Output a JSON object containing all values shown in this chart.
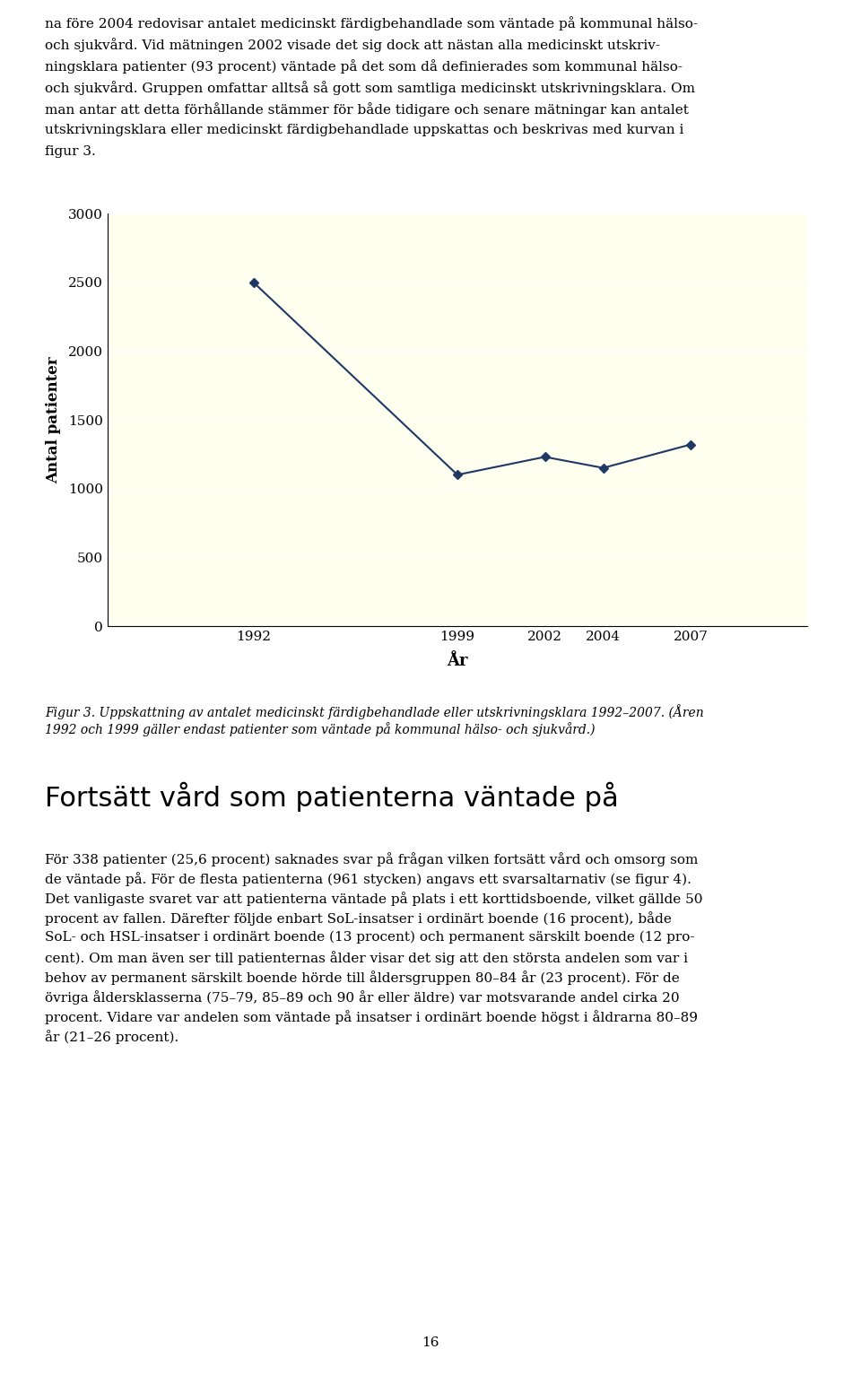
{
  "top_text_lines": [
    "na före 2004 redovisar antalet medicinskt färdigbehandlade som väntade på kommunal hälso-",
    "och sjukvård. Vid mätningen 2002 visade det sig dock att nästan alla medicinskt utskriv-",
    "ningsklara patienter (93 procent) väntade på det som då definierades som kommunal hälso-",
    "och sjukvård. Gruppen omfattar alltså så gott som samtliga medicinskt utskrivningsklara. Om",
    "man antar att detta förhållande stämmer för både tidigare och senare mätningar kan antalet",
    "utskrivningsklara eller medicinskt färdigbehandlade uppskattas och beskrivas med kurvan i",
    "figur 3."
  ],
  "x_values": [
    1992,
    1999,
    2002,
    2004,
    2007
  ],
  "y_values": [
    2500,
    1100,
    1230,
    1150,
    1320
  ],
  "ylabel": "Antal patienter",
  "xlabel": "År",
  "ylim": [
    0,
    3000
  ],
  "yticks": [
    0,
    500,
    1000,
    1500,
    2000,
    2500,
    3000
  ],
  "xticks": [
    1992,
    1999,
    2002,
    2004,
    2007
  ],
  "line_color": "#1F3864",
  "marker": "D",
  "marker_size": 5,
  "bg_color": "#FFFFF0",
  "grid_color": "#FFFFFF",
  "caption_line1": "Figur 3. Uppskattning av antalet medicinskt färdigbehandlade eller utskrivningsklara 1992–2007. (Åren",
  "caption_line2": "1992 och 1999 gäller endast patienter som väntade på kommunal hälso- och sjukvård.)",
  "section_title": "Fortsätt vård som patienterna väntade på",
  "body_text_lines": [
    "För 338 patienter (25,6 procent) saknades svar på frågan vilken fortsätt vård och omsorg som",
    "de väntade på. För de flesta patienterna (961 stycken) angavs ett svarsaltarnativ (se figur 4).",
    "Det vanligaste svaret var att patienterna väntade på plats i ett korttidsboende, vilket gällde 50",
    "procent av fallen. Därefter följde enbart SoL-insatser i ordinärt boende (16 procent), både",
    "SoL- och HSL-insatser i ordinärt boende (13 procent) och permanent särskilt boende (12 pro-",
    "cent). Om man även ser till patienternas ålder visar det sig att den största andelen som var i",
    "behov av permanent särskilt boende hörde till åldersgruppen 80–84 år (23 procent). För de",
    "övriga åldersklasserna (75–79, 85–89 och 90 år eller äldre) var motsvarande andel cirka 20",
    "procent. Vidare var andelen som väntade på insatser i ordinärt boende högst i åldrarna 80–89",
    "år (21–26 procent)."
  ],
  "page_number": "16"
}
